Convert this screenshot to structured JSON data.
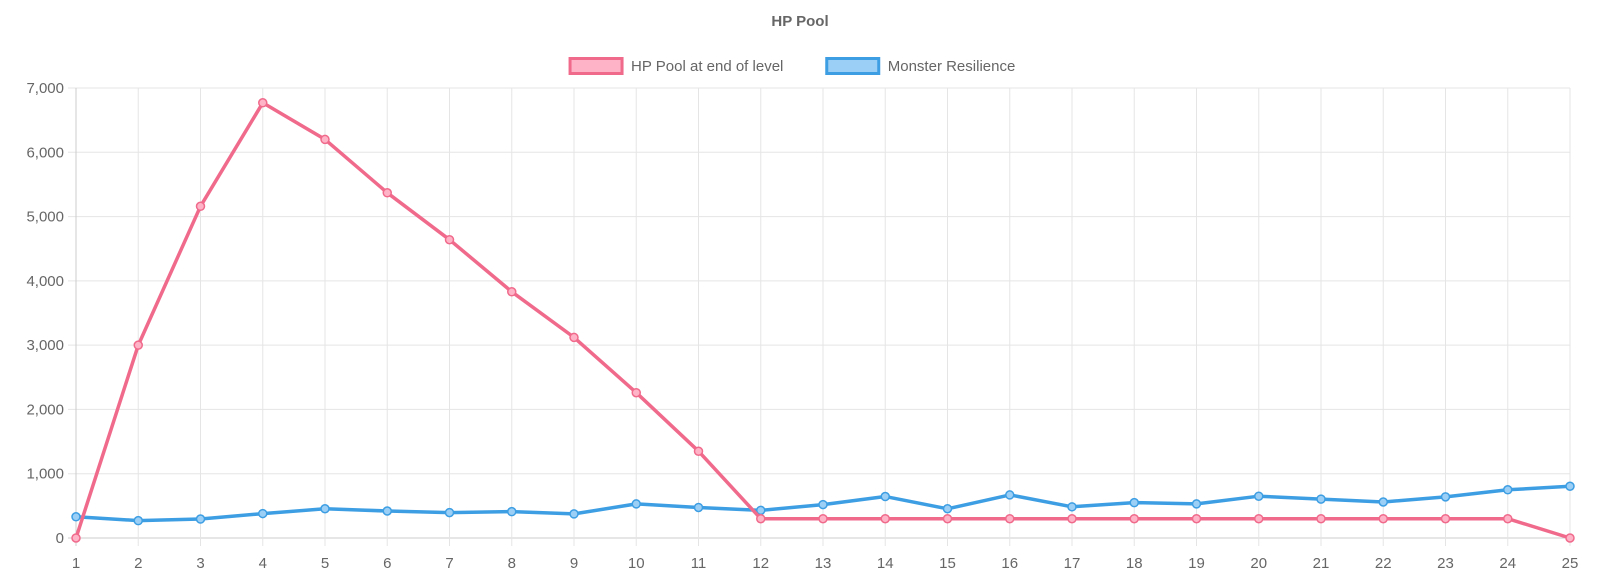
{
  "chart_data": {
    "type": "line",
    "title": "HP Pool",
    "xlabel": "",
    "ylabel": "",
    "categories": [
      "1",
      "2",
      "3",
      "4",
      "5",
      "6",
      "7",
      "8",
      "9",
      "10",
      "11",
      "12",
      "13",
      "14",
      "15",
      "16",
      "17",
      "18",
      "19",
      "20",
      "21",
      "22",
      "23",
      "24",
      "25"
    ],
    "y_ticks": [
      "0",
      "1,000",
      "2,000",
      "3,000",
      "4,000",
      "5,000",
      "6,000",
      "7,000"
    ],
    "ylim": [
      0,
      7000
    ],
    "grid": true,
    "legend_position": "top-center",
    "series": [
      {
        "name": "HP Pool at end of level",
        "color": "#f06a8c",
        "fill": "#ffb3c6",
        "values": [
          0,
          3000,
          5160,
          6770,
          6200,
          5370,
          4640,
          3830,
          3120,
          2260,
          1350,
          300,
          300,
          300,
          300,
          300,
          300,
          300,
          300,
          300,
          300,
          300,
          300,
          300,
          0
        ]
      },
      {
        "name": "Monster Resilience",
        "color": "#3d9ee3",
        "fill": "#9ccff5",
        "values": [
          330,
          270,
          295,
          380,
          455,
          420,
          395,
          410,
          375,
          530,
          475,
          430,
          520,
          645,
          455,
          670,
          485,
          550,
          530,
          650,
          605,
          560,
          640,
          750,
          805
        ]
      }
    ]
  }
}
